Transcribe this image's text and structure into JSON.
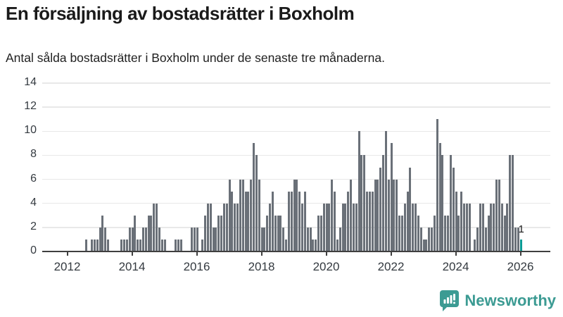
{
  "header": {
    "title": "En försäljning av bostadsrätter i Boxholm",
    "subtitle": "Antal sålda bostadsrätter i Boxholm under de senaste tre månaderna."
  },
  "footer": {
    "brand": "Newsworthy",
    "logo_icon": "bar-chart-speech-bubble-icon"
  },
  "colors": {
    "bar": "#6a7078",
    "highlight": "#0b9b95",
    "grid": "#e8e8e8",
    "axis": "#3f3f3f",
    "title_text": "#1a1a1a",
    "tick_text": "#343a40",
    "brand_teal": "#3c9b93"
  },
  "chart_data": {
    "type": "bar",
    "title": "En försäljning av bostadsrätter i Boxholm",
    "subtitle": "Antal sålda bostadsrätter i Boxholm under de senaste tre månaderna.",
    "x_start_month": "2011-04",
    "x_end_month": "2026-01",
    "values": [
      0,
      0,
      0,
      0,
      0,
      0,
      0,
      0,
      0,
      0,
      0,
      0,
      0,
      0,
      0,
      0,
      1,
      0,
      1,
      1,
      1,
      2,
      3,
      2,
      1,
      0,
      0,
      0,
      0,
      1,
      1,
      1,
      2,
      2,
      3,
      1,
      1,
      2,
      2,
      3,
      3,
      4,
      4,
      2,
      1,
      1,
      0,
      0,
      0,
      1,
      1,
      1,
      0,
      0,
      0,
      2,
      2,
      2,
      0,
      1,
      3,
      4,
      4,
      2,
      2,
      3,
      3,
      4,
      4,
      6,
      5,
      4,
      4,
      6,
      6,
      5,
      5,
      6,
      9,
      8,
      6,
      2,
      2,
      3,
      4,
      5,
      3,
      3,
      3,
      2,
      1,
      5,
      5,
      6,
      6,
      5,
      4,
      5,
      2,
      2,
      1,
      1,
      3,
      3,
      4,
      4,
      4,
      6,
      5,
      1,
      2,
      4,
      4,
      5,
      6,
      4,
      4,
      10,
      8,
      8,
      5,
      5,
      5,
      6,
      6,
      7,
      8,
      10,
      6,
      9,
      6,
      6,
      3,
      3,
      4,
      5,
      7,
      4,
      4,
      3,
      2,
      1,
      1,
      2,
      2,
      3,
      11,
      9,
      8,
      3,
      3,
      8,
      7,
      5,
      3,
      5,
      4,
      4,
      4,
      0,
      1,
      2,
      4,
      4,
      2,
      3,
      4,
      4,
      6,
      6,
      4,
      3,
      4,
      8,
      8,
      2,
      2,
      1
    ],
    "highlight_last": true,
    "highlight_label": "1",
    "y_ticks": [
      0,
      2,
      4,
      6,
      8,
      10,
      12,
      14
    ],
    "ylim": [
      0,
      14
    ],
    "x_tick_labels": [
      "2012",
      "2014",
      "2016",
      "2018",
      "2020",
      "2022",
      "2024",
      "2026"
    ],
    "grid": true,
    "legend": "none"
  }
}
